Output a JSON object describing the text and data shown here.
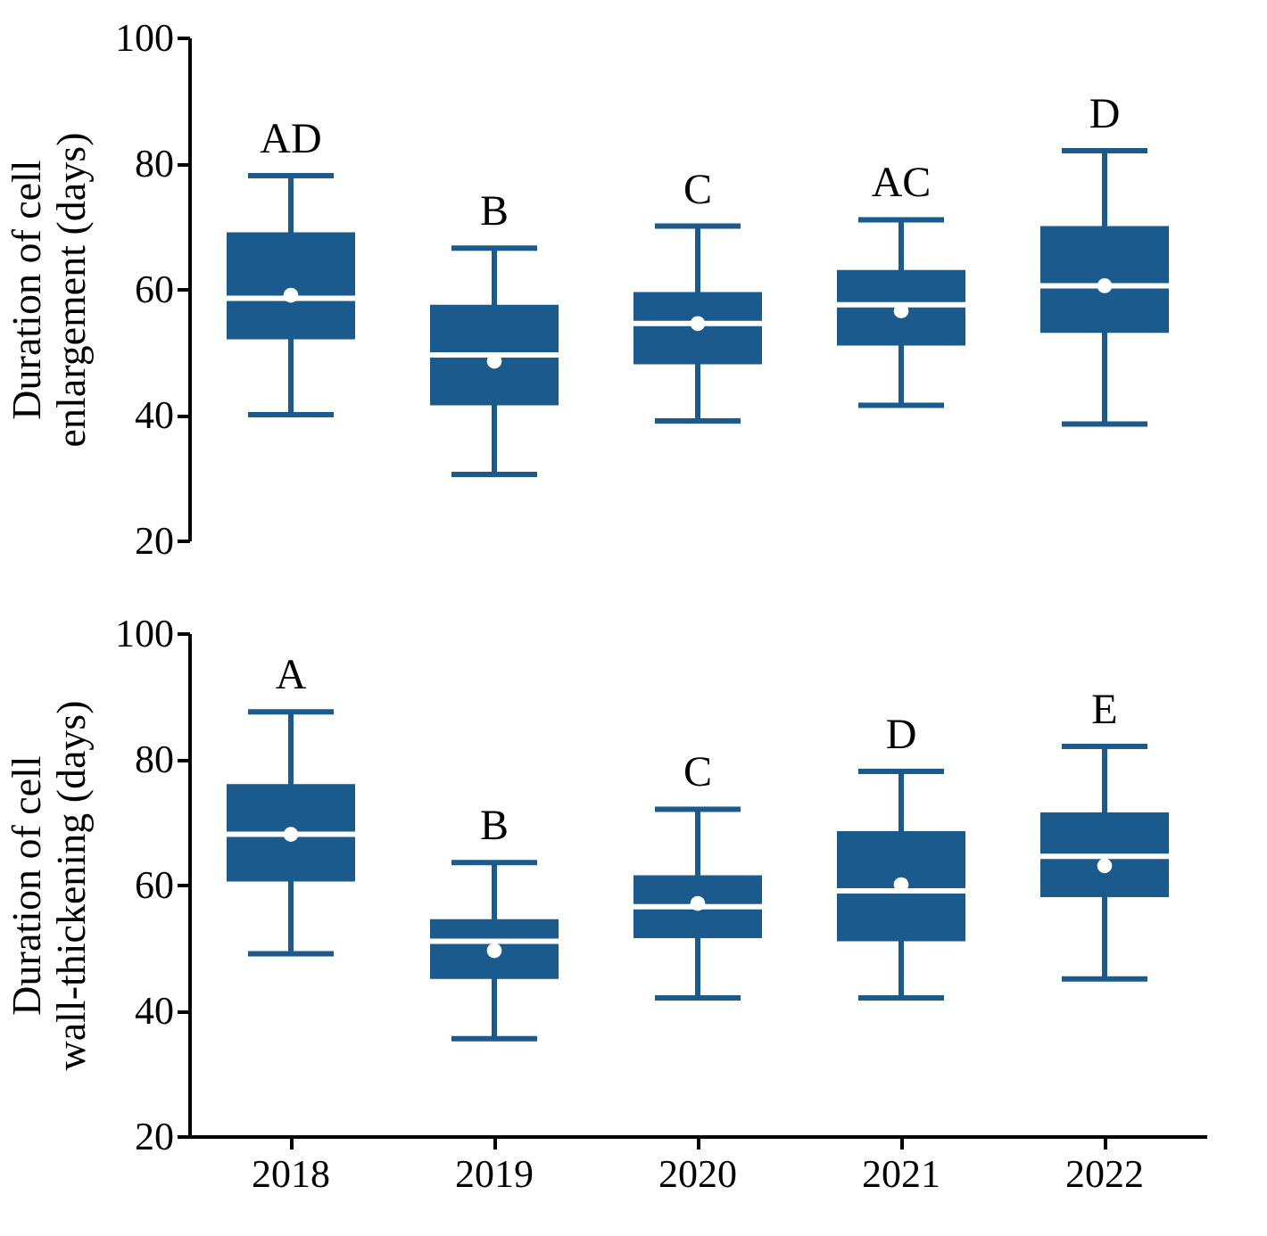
{
  "chart_data": [
    {
      "type": "box",
      "ylabel": "Duration of cell enlargement (days)",
      "categories": [
        "2018",
        "2019",
        "2020",
        "2021",
        "2022"
      ],
      "color": "#1b5a8c",
      "ylim": [
        20,
        100
      ],
      "yticks": [
        20,
        40,
        60,
        80,
        100
      ],
      "grid": false,
      "tick_labels": "y",
      "boxes": [
        {
          "low": 40,
          "q1": 52,
          "median": 58.5,
          "q3": 69,
          "high": 78,
          "mean": 59
        },
        {
          "low": 30.5,
          "q1": 41.5,
          "median": 49.5,
          "q3": 57.5,
          "high": 66.5,
          "mean": 48.5
        },
        {
          "low": 39,
          "q1": 48,
          "median": 54.5,
          "q3": 59.5,
          "high": 70,
          "mean": 54.5
        },
        {
          "low": 41.5,
          "q1": 51,
          "median": 57.5,
          "q3": 63,
          "high": 71,
          "mean": 56.5
        },
        {
          "low": 38.5,
          "q1": 53,
          "median": 60.5,
          "q3": 70,
          "high": 82,
          "mean": 60.5
        }
      ],
      "annotations": [
        "AD",
        "B",
        "C",
        "AC",
        "D"
      ]
    },
    {
      "type": "box",
      "ylabel": "Duration of cell wall-thickening (days)",
      "categories": [
        "2018",
        "2019",
        "2020",
        "2021",
        "2022"
      ],
      "color": "#1b5a8c",
      "ylim": [
        20,
        100
      ],
      "yticks": [
        20,
        40,
        60,
        80,
        100
      ],
      "grid": false,
      "boxes": [
        {
          "low": 49,
          "q1": 60.5,
          "median": 68,
          "q3": 76,
          "high": 87.5,
          "mean": 68
        },
        {
          "low": 35.5,
          "q1": 45,
          "median": 51,
          "q3": 54.5,
          "high": 63.5,
          "mean": 49.5
        },
        {
          "low": 42,
          "q1": 51.5,
          "median": 56.5,
          "q3": 61.5,
          "high": 72,
          "mean": 57
        },
        {
          "low": 42,
          "q1": 51,
          "median": 59,
          "q3": 68.5,
          "high": 78,
          "mean": 60
        },
        {
          "low": 45,
          "q1": 58,
          "median": 64.5,
          "q3": 71.5,
          "high": 82,
          "mean": 63
        }
      ],
      "annotations": [
        "A",
        "B",
        "C",
        "D",
        "E"
      ]
    }
  ]
}
